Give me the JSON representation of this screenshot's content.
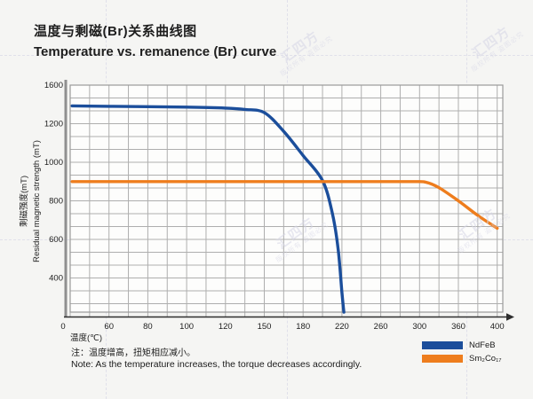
{
  "title": {
    "zh": "温度与剩磁(Br)关系曲线图",
    "en": "Temperature vs. remanence (Br) curve"
  },
  "notes": {
    "zh": "注：温度增高，扭矩相应减小。",
    "en": "Note: As the temperature increases, the torque decreases accordingly."
  },
  "watermark": {
    "brand": "汇四方",
    "tagline": "版权所有 盗图必究"
  },
  "colors": {
    "ndfeb": "#1b4e9b",
    "sm2co17": "#ee7d1d",
    "grid": "#aeaeae",
    "plot_border": "#9a9a9a",
    "axis": "#2e2e2e",
    "spine": "#8f8f8f",
    "plot_bg": "#fdfdfc",
    "background": "#f5f5f3"
  },
  "chart_data": {
    "type": "line",
    "xlabel": "温度(℃)",
    "ylabel_zh": "剩磁强度(mT)",
    "ylabel_en": "Residual magnetic strength (mT)",
    "x_ticks": [
      0,
      60,
      80,
      100,
      120,
      150,
      180,
      220,
      260,
      300,
      360,
      400
    ],
    "y_ticks": [
      0,
      400,
      600,
      800,
      1000,
      1200,
      1600
    ],
    "ylim": [
      0,
      1600
    ],
    "grid": true,
    "axis_note": "tick marks are evenly spaced although tick values are non-uniform",
    "legend_position": "bottom-right",
    "series": [
      {
        "name": "NdFeB",
        "color": "#1b4e9b",
        "points": [
          [
            3,
            1385
          ],
          [
            60,
            1380
          ],
          [
            100,
            1372
          ],
          [
            120,
            1362
          ],
          [
            135,
            1348
          ],
          [
            150,
            1315
          ],
          [
            165,
            1160
          ],
          [
            180,
            1035
          ],
          [
            200,
            905
          ],
          [
            210,
            738
          ],
          [
            216,
            555
          ],
          [
            220,
            250
          ],
          [
            222,
            45
          ]
        ]
      },
      {
        "name": "Sm₂Co₁₇",
        "color": "#ee7d1d",
        "points": [
          [
            3,
            900
          ],
          [
            100,
            900
          ],
          [
            200,
            900
          ],
          [
            290,
            900
          ],
          [
            310,
            896
          ],
          [
            330,
            868
          ],
          [
            360,
            800
          ],
          [
            380,
            724
          ],
          [
            400,
            658
          ]
        ]
      }
    ]
  }
}
